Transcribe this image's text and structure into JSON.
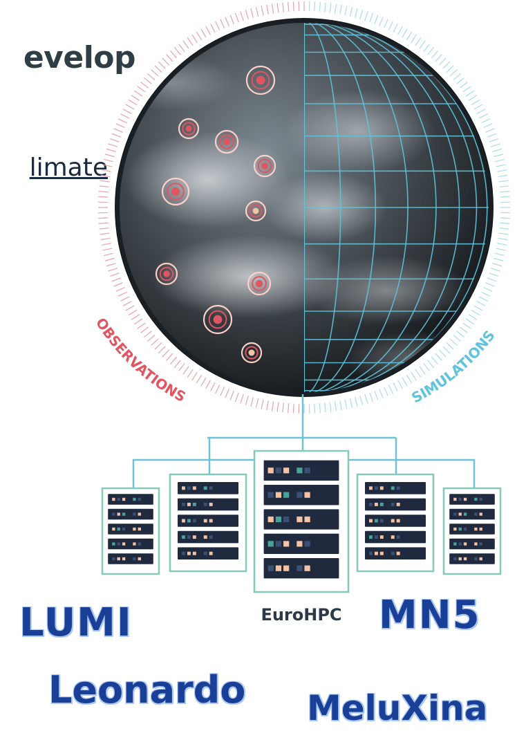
{
  "heading_fragment": "evelop",
  "link_fragment": "limate",
  "arc_labels": {
    "observations": "OBSERVATIONS",
    "simulations": "SIMULATIONS"
  },
  "center_label": "EuroHPC",
  "hpc_names": {
    "lumi": "LUMI",
    "leonardo": "Leonardo",
    "mn5": "MN5",
    "meluxina": "MeluXina"
  },
  "colors": {
    "observations": "#e05561",
    "simulations": "#5fc3dc",
    "server_outline": "#84c9ba",
    "connector": "#6fc1d8",
    "rack_unit": "#1f2a3f",
    "name_text": "#1a3f96",
    "name_glow": "#a9c8f2"
  },
  "icons": [
    "globe-icon",
    "observation-marker-icon",
    "simulation-grid-icon",
    "server-rack-icon"
  ]
}
